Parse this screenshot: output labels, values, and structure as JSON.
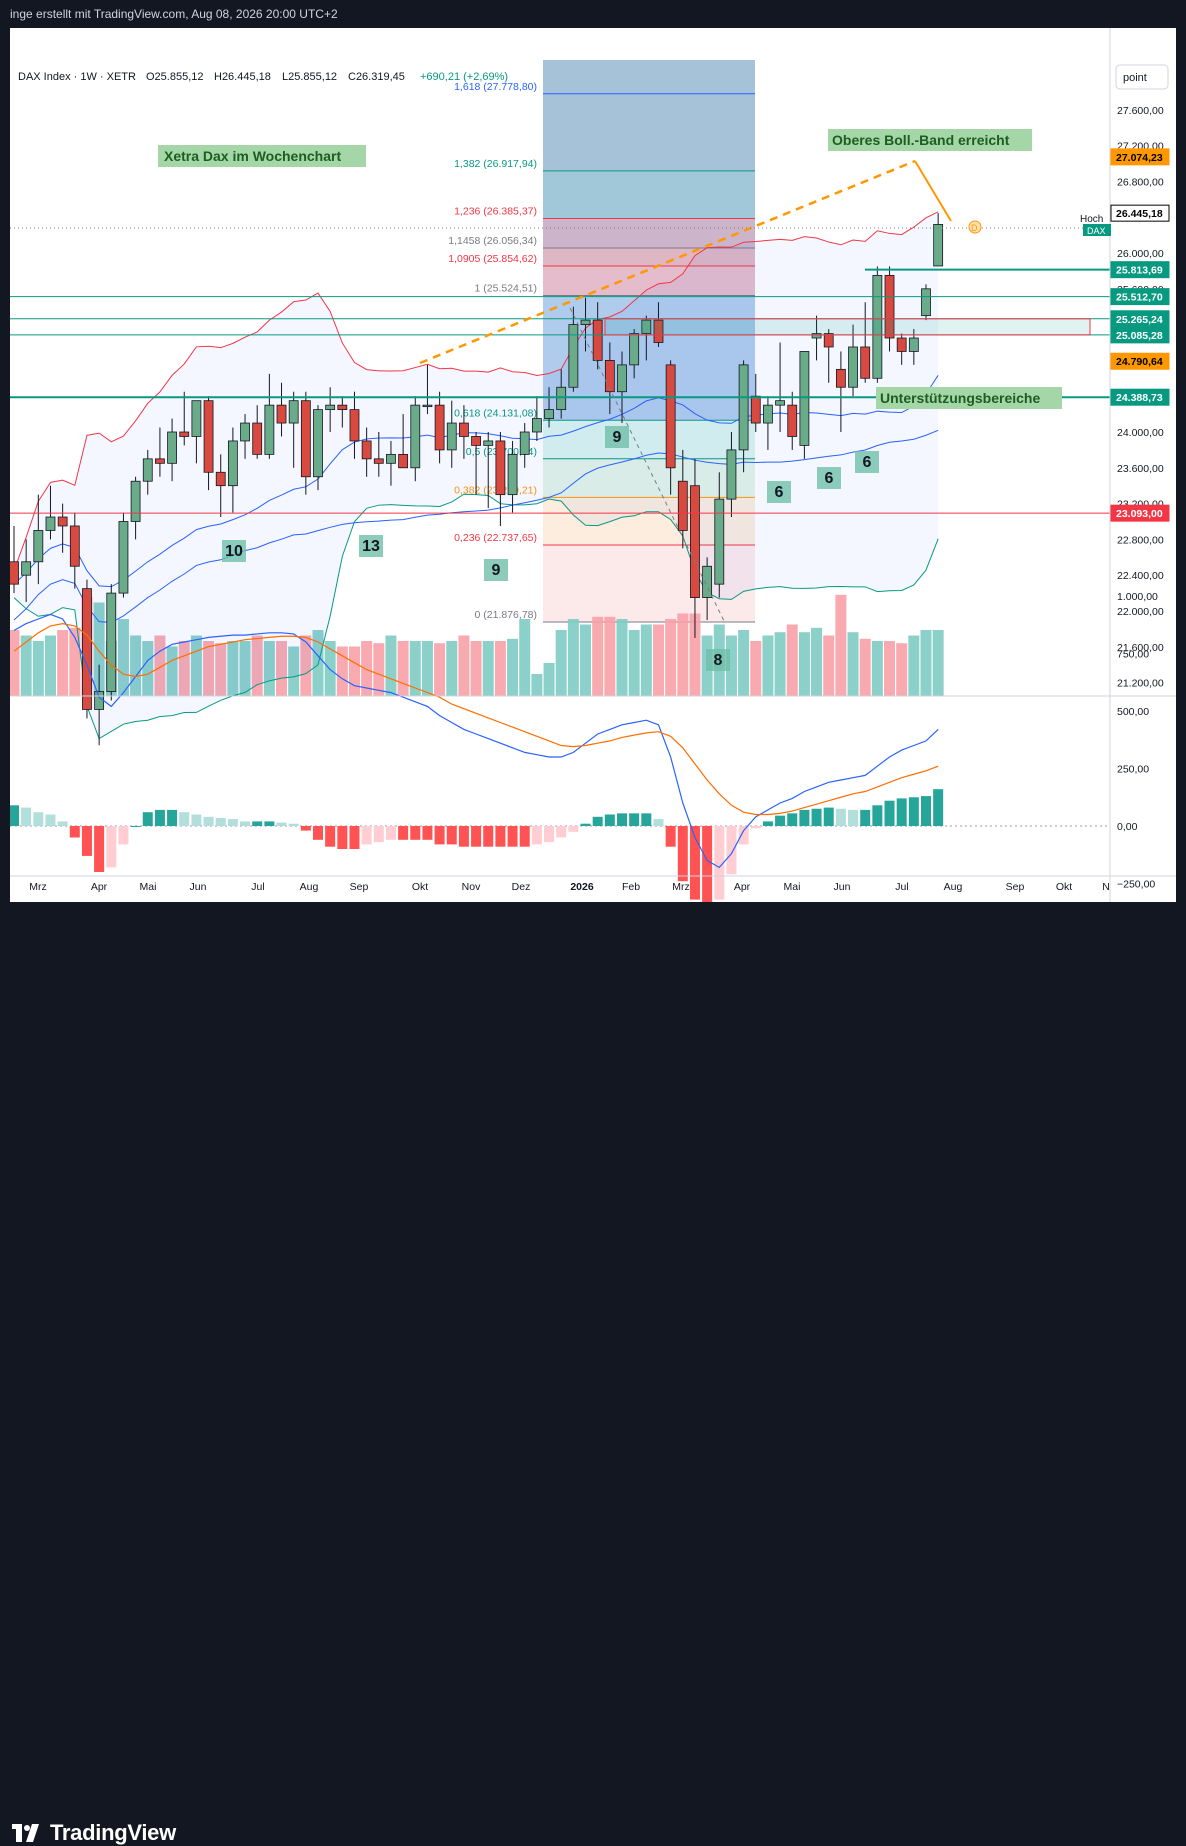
{
  "header": {
    "attribution": "inge erstellt mit TradingView.com, Aug 08, 2026 20:00 UTC+2"
  },
  "legend": {
    "symbol": "DAX Index · 1W · XETR",
    "open": "O25.855,12",
    "high": "H26.445,18",
    "low": "L25.855,12",
    "close": "C26.319,45",
    "change": "+690,21 (+2,69%)"
  },
  "annotations": {
    "title_box": "Xetra Dax im Wochenchart",
    "boll_box": "Oberes Boll.-Band erreicht",
    "support_box": "Unterstützungsbereiche",
    "d_marker": "D"
  },
  "axis_unit": "point",
  "price_ticks": [
    "27.600,00",
    "27.200,00",
    "26.800,00",
    "26.000,00",
    "25.600,00",
    "24.000,00",
    "23.600,00",
    "23.200,00",
    "22.800,00",
    "22.400,00",
    "22.000,00",
    "21.600,00",
    "21.200,00"
  ],
  "price_tags": [
    {
      "text": "27.074,23",
      "bg": "#ff9800",
      "color": "#000000"
    },
    {
      "text": "26.445,18",
      "bg": "#ffffff",
      "color": "#000000",
      "border": "#000000"
    },
    {
      "text": "25.813,69",
      "bg": "#089981",
      "color": "#ffffff"
    },
    {
      "text": "25.512,70",
      "bg": "#089981",
      "color": "#ffffff"
    },
    {
      "text": "25.265,24",
      "bg": "#089981",
      "color": "#ffffff"
    },
    {
      "text": "25.085,28",
      "bg": "#089981",
      "color": "#ffffff"
    },
    {
      "text": "24.790,64",
      "bg": "#ff9800",
      "color": "#000000"
    },
    {
      "text": "24.388,73",
      "bg": "#089981",
      "color": "#ffffff"
    },
    {
      "text": "23.093,00",
      "bg": "#f23645",
      "color": "#ffffff"
    }
  ],
  "hoch_label": "Hoch",
  "dax_label": "DAX",
  "fib_labels": [
    {
      "text": "1,618 (27.778,80)",
      "color": "#2962ff"
    },
    {
      "text": "1,382 (26.917,94)",
      "color": "#089981"
    },
    {
      "text": "1,236 (26.385,37)",
      "color": "#f23645"
    },
    {
      "text": "1,1458 (26.056,34)",
      "color": "#787b86"
    },
    {
      "text": "1,0905 (25.854,62)",
      "color": "#f23645"
    },
    {
      "text": "1 (25.524,51)",
      "color": "#787b86"
    },
    {
      "text": "0,618 (24.131,08)",
      "color": "#089981"
    },
    {
      "text": "0,5 (23.700,94)",
      "color": "#089981"
    },
    {
      "text": "0,382 (23.270,21)",
      "color": "#ff9800"
    },
    {
      "text": "0,236 (22.737,65)",
      "color": "#f23645"
    },
    {
      "text": "0 (21.876,78)",
      "color": "#787b86"
    }
  ],
  "counts": [
    "10",
    "13",
    "9",
    "9",
    "8",
    "6",
    "6",
    "6"
  ],
  "macd_ticks": [
    "1.000,00",
    "750,00",
    "500,00",
    "250,00",
    "0,00",
    "−250,00"
  ],
  "time_labels": [
    "Mrz",
    "Apr",
    "Mai",
    "Jun",
    "Jul",
    "Aug",
    "Sep",
    "Okt",
    "Nov",
    "Dez",
    "2026",
    "Feb",
    "Mrz",
    "Apr",
    "Mai",
    "Jun",
    "Jul",
    "Aug",
    "Sep",
    "Okt",
    "N"
  ],
  "footer": {
    "brand": "TradingView"
  },
  "colors": {
    "up": "#089981",
    "down": "#f23645",
    "accent": "#ff9800",
    "boll": "#f23645",
    "ma": "#2962ff"
  },
  "chart_data": {
    "type": "candlestick",
    "title": "Xetra Dax im Wochenchart",
    "symbol": "DAX Index, 1W, XETR",
    "y_range": [
      21000,
      28000
    ],
    "macd_range": [
      -350,
      1050
    ],
    "candles": [
      {
        "t": "2025-02-24",
        "o": 22550,
        "h": 22950,
        "l": 22200,
        "c": 22300
      },
      {
        "t": "2025-03-03",
        "o": 22400,
        "h": 22800,
        "l": 22100,
        "c": 22550
      },
      {
        "t": "2025-03-10",
        "o": 22550,
        "h": 23300,
        "l": 22300,
        "c": 22900
      },
      {
        "t": "2025-03-17",
        "o": 22900,
        "h": 23400,
        "l": 22800,
        "c": 23050
      },
      {
        "t": "2025-03-24",
        "o": 23050,
        "h": 23200,
        "l": 22650,
        "c": 22950
      },
      {
        "t": "2025-03-31",
        "o": 22950,
        "h": 23100,
        "l": 22250,
        "c": 22500
      },
      {
        "t": "2025-04-07",
        "o": 22250,
        "h": 22350,
        "l": 20800,
        "c": 20900
      },
      {
        "t": "2025-04-14",
        "o": 20900,
        "h": 21400,
        "l": 20500,
        "c": 21100
      },
      {
        "t": "2025-04-21",
        "o": 21100,
        "h": 22300,
        "l": 21000,
        "c": 22200
      },
      {
        "t": "2025-04-28",
        "o": 22200,
        "h": 23100,
        "l": 22150,
        "c": 23000
      },
      {
        "t": "2025-05-05",
        "o": 23000,
        "h": 23500,
        "l": 22800,
        "c": 23450
      },
      {
        "t": "2025-05-12",
        "o": 23450,
        "h": 23800,
        "l": 23300,
        "c": 23700
      },
      {
        "t": "2025-05-19",
        "o": 23700,
        "h": 24050,
        "l": 23500,
        "c": 23650
      },
      {
        "t": "2025-05-26",
        "o": 23650,
        "h": 24150,
        "l": 23450,
        "c": 24000
      },
      {
        "t": "2025-06-02",
        "o": 24000,
        "h": 24450,
        "l": 23850,
        "c": 23950
      },
      {
        "t": "2025-06-09",
        "o": 23950,
        "h": 24350,
        "l": 23650,
        "c": 24350
      },
      {
        "t": "2025-06-16",
        "o": 24350,
        "h": 24400,
        "l": 23350,
        "c": 23550
      },
      {
        "t": "2025-06-23",
        "o": 23550,
        "h": 23750,
        "l": 23050,
        "c": 23400
      },
      {
        "t": "2025-06-30",
        "o": 23400,
        "h": 24050,
        "l": 23100,
        "c": 23900
      },
      {
        "t": "2025-07-07",
        "o": 23900,
        "h": 24200,
        "l": 23700,
        "c": 24100
      },
      {
        "t": "2025-07-14",
        "o": 24100,
        "h": 24300,
        "l": 23700,
        "c": 23750
      },
      {
        "t": "2025-07-21",
        "o": 23750,
        "h": 24650,
        "l": 23700,
        "c": 24300
      },
      {
        "t": "2025-07-28",
        "o": 24300,
        "h": 24550,
        "l": 23950,
        "c": 24100
      },
      {
        "t": "2025-08-04",
        "o": 24100,
        "h": 24450,
        "l": 23600,
        "c": 24350
      },
      {
        "t": "2025-08-11",
        "o": 24350,
        "h": 24450,
        "l": 23300,
        "c": 23500
      },
      {
        "t": "2025-08-18",
        "o": 23500,
        "h": 24300,
        "l": 23350,
        "c": 24250
      },
      {
        "t": "2025-08-25",
        "o": 24250,
        "h": 24500,
        "l": 24000,
        "c": 24300
      },
      {
        "t": "2025-09-01",
        "o": 24300,
        "h": 24400,
        "l": 24050,
        "c": 24250
      },
      {
        "t": "2025-09-08",
        "o": 24250,
        "h": 24450,
        "l": 23700,
        "c": 23900
      },
      {
        "t": "2025-09-15",
        "o": 23900,
        "h": 24050,
        "l": 23500,
        "c": 23700
      },
      {
        "t": "2025-09-22",
        "o": 23700,
        "h": 24000,
        "l": 23500,
        "c": 23650
      },
      {
        "t": "2025-09-29",
        "o": 23650,
        "h": 23900,
        "l": 23400,
        "c": 23750
      },
      {
        "t": "2025-10-06",
        "o": 23750,
        "h": 24200,
        "l": 23650,
        "c": 23600
      },
      {
        "t": "2025-10-13",
        "o": 23600,
        "h": 24400,
        "l": 23450,
        "c": 24300
      },
      {
        "t": "2025-10-20",
        "o": 24300,
        "h": 24750,
        "l": 24200,
        "c": 24300
      },
      {
        "t": "2025-10-27",
        "o": 24300,
        "h": 24450,
        "l": 23650,
        "c": 23800
      },
      {
        "t": "2025-11-03",
        "o": 23800,
        "h": 24350,
        "l": 23600,
        "c": 24100
      },
      {
        "t": "2025-11-10",
        "o": 24100,
        "h": 24300,
        "l": 23700,
        "c": 23950
      },
      {
        "t": "2025-11-17",
        "o": 23950,
        "h": 24000,
        "l": 23300,
        "c": 23850
      },
      {
        "t": "2025-11-24",
        "o": 23850,
        "h": 24000,
        "l": 23150,
        "c": 23900
      },
      {
        "t": "2025-12-01",
        "o": 23900,
        "h": 24000,
        "l": 22950,
        "c": 23300
      },
      {
        "t": "2025-12-08",
        "o": 23300,
        "h": 23900,
        "l": 23100,
        "c": 23750
      },
      {
        "t": "2025-12-15",
        "o": 23750,
        "h": 24100,
        "l": 23600,
        "c": 24000
      },
      {
        "t": "2025-12-22",
        "o": 24000,
        "h": 24400,
        "l": 23900,
        "c": 24150
      },
      {
        "t": "2025-12-29",
        "o": 24150,
        "h": 24500,
        "l": 24050,
        "c": 24250
      },
      {
        "t": "2026-01-05",
        "o": 24250,
        "h": 24700,
        "l": 24150,
        "c": 24500
      },
      {
        "t": "2026-01-12",
        "o": 24500,
        "h": 25400,
        "l": 24450,
        "c": 25200
      },
      {
        "t": "2026-01-19",
        "o": 25200,
        "h": 25500,
        "l": 24900,
        "c": 25250
      },
      {
        "t": "2026-01-26",
        "o": 25250,
        "h": 25450,
        "l": 24700,
        "c": 24800
      },
      {
        "t": "2026-02-02",
        "o": 24800,
        "h": 25000,
        "l": 24200,
        "c": 24450
      },
      {
        "t": "2026-02-09",
        "o": 24450,
        "h": 24900,
        "l": 24100,
        "c": 24750
      },
      {
        "t": "2026-02-16",
        "o": 24750,
        "h": 25150,
        "l": 24600,
        "c": 25100
      },
      {
        "t": "2026-02-23",
        "o": 25100,
        "h": 25300,
        "l": 24800,
        "c": 25250
      },
      {
        "t": "2026-03-02",
        "o": 25250,
        "h": 25450,
        "l": 24950,
        "c": 25000
      },
      {
        "t": "2026-03-09",
        "o": 24750,
        "h": 24800,
        "l": 23300,
        "c": 23600
      },
      {
        "t": "2026-03-16",
        "o": 23450,
        "h": 23800,
        "l": 22700,
        "c": 22900
      },
      {
        "t": "2026-03-23",
        "o": 23400,
        "h": 23700,
        "l": 21700,
        "c": 22150
      },
      {
        "t": "2026-03-30",
        "o": 22150,
        "h": 22600,
        "l": 21900,
        "c": 22500
      },
      {
        "t": "2026-04-06",
        "o": 22300,
        "h": 23550,
        "l": 22150,
        "c": 23250
      },
      {
        "t": "2026-04-13",
        "o": 23250,
        "h": 24000,
        "l": 23050,
        "c": 23800
      },
      {
        "t": "2026-04-20",
        "o": 23800,
        "h": 24800,
        "l": 23550,
        "c": 24750
      },
      {
        "t": "2026-04-27",
        "o": 24400,
        "h": 24650,
        "l": 24000,
        "c": 24100
      },
      {
        "t": "2026-05-04",
        "o": 24100,
        "h": 24400,
        "l": 23800,
        "c": 24300
      },
      {
        "t": "2026-05-11",
        "o": 24300,
        "h": 25000,
        "l": 24000,
        "c": 24350
      },
      {
        "t": "2026-05-18",
        "o": 24300,
        "h": 24450,
        "l": 23800,
        "c": 23950
      },
      {
        "t": "2026-05-25",
        "o": 23850,
        "h": 24900,
        "l": 23700,
        "c": 24900
      },
      {
        "t": "2026-06-01",
        "o": 25050,
        "h": 25300,
        "l": 24800,
        "c": 25100
      },
      {
        "t": "2026-06-08",
        "o": 25100,
        "h": 25150,
        "l": 24550,
        "c": 24950
      },
      {
        "t": "2026-06-15",
        "o": 24700,
        "h": 24900,
        "l": 24000,
        "c": 24500
      },
      {
        "t": "2026-06-22",
        "o": 24500,
        "h": 25200,
        "l": 24400,
        "c": 24950
      },
      {
        "t": "2026-06-29",
        "o": 24950,
        "h": 25450,
        "l": 24550,
        "c": 24600
      },
      {
        "t": "2026-07-06",
        "o": 24600,
        "h": 25850,
        "l": 24550,
        "c": 25750
      },
      {
        "t": "2026-07-13",
        "o": 25750,
        "h": 25850,
        "l": 24900,
        "c": 25050
      },
      {
        "t": "2026-07-20",
        "o": 25050,
        "h": 25100,
        "l": 24750,
        "c": 24900
      },
      {
        "t": "2026-07-27",
        "o": 24900,
        "h": 25150,
        "l": 24750,
        "c": 25050
      },
      {
        "t": "2026-08-03",
        "o": 25300,
        "h": 25650,
        "l": 25250,
        "c": 25600
      },
      {
        "t": "2026-08-10",
        "o": 25855.12,
        "h": 26445.18,
        "l": 25855.12,
        "c": 26319.45
      }
    ],
    "horizontal_levels": [
      25813.69,
      25512.7,
      25265.24,
      25085.28,
      24388.73,
      23093.0
    ],
    "fibonacci": [
      {
        "ratio": 1.618,
        "price": 27778.8
      },
      {
        "ratio": 1.382,
        "price": 26917.94
      },
      {
        "ratio": 1.236,
        "price": 26385.37
      },
      {
        "ratio": 1.1458,
        "price": 26056.34
      },
      {
        "ratio": 1.0905,
        "price": 25854.62
      },
      {
        "ratio": 1.0,
        "price": 25524.51
      },
      {
        "ratio": 0.618,
        "price": 24131.08
      },
      {
        "ratio": 0.5,
        "price": 23700.94
      },
      {
        "ratio": 0.382,
        "price": 23270.21
      },
      {
        "ratio": 0.236,
        "price": 22737.65
      },
      {
        "ratio": 0,
        "price": 21876.78
      }
    ],
    "macd": {
      "macd_line": [
        850,
        880,
        900,
        920,
        900,
        820,
        700,
        560,
        520,
        580,
        650,
        720,
        760,
        790,
        800,
        810,
        820,
        825,
        830,
        830,
        835,
        840,
        840,
        835,
        800,
        740,
        680,
        640,
        610,
        600,
        590,
        580,
        560,
        540,
        520,
        480,
        450,
        420,
        400,
        380,
        360,
        340,
        320,
        310,
        300,
        300,
        320,
        360,
        400,
        420,
        440,
        450,
        460,
        440,
        300,
        100,
        -50,
        -150,
        -180,
        -120,
        -20,
        40,
        70,
        100,
        120,
        150,
        170,
        190,
        200,
        210,
        220,
        260,
        300,
        330,
        350,
        370,
        420
      ],
      "signal_line": [
        760,
        800,
        840,
        870,
        880,
        870,
        830,
        760,
        700,
        660,
        650,
        660,
        690,
        720,
        740,
        760,
        780,
        790,
        800,
        810,
        815,
        820,
        825,
        825,
        820,
        800,
        770,
        740,
        710,
        680,
        660,
        640,
        620,
        600,
        580,
        560,
        530,
        510,
        490,
        470,
        450,
        430,
        410,
        390,
        370,
        350,
        345,
        350,
        360,
        370,
        385,
        395,
        405,
        410,
        390,
        340,
        270,
        200,
        140,
        90,
        60,
        50,
        50,
        55,
        65,
        80,
        95,
        110,
        125,
        140,
        150,
        170,
        190,
        210,
        225,
        240,
        260
      ]
    },
    "volume_relative": [
      0.6,
      0.55,
      0.5,
      0.55,
      0.6,
      0.62,
      0.9,
      0.85,
      0.5,
      0.7,
      0.55,
      0.5,
      0.55,
      0.45,
      0.5,
      0.55,
      0.5,
      0.48,
      0.5,
      0.5,
      0.55,
      0.5,
      0.5,
      0.45,
      0.55,
      0.6,
      0.5,
      0.45,
      0.45,
      0.5,
      0.48,
      0.55,
      0.5,
      0.5,
      0.5,
      0.48,
      0.5,
      0.55,
      0.5,
      0.5,
      0.5,
      0.52,
      0.7,
      0.2,
      0.3,
      0.6,
      0.7,
      0.65,
      0.72,
      0.72,
      0.7,
      0.6,
      0.65,
      0.65,
      0.7,
      0.75,
      0.75,
      0.55,
      0.65,
      0.55,
      0.6,
      0.5,
      0.55,
      0.58,
      0.65,
      0.58,
      0.62,
      0.55,
      0.92,
      0.58,
      0.52,
      0.5,
      0.5,
      0.48,
      0.55,
      0.6,
      0.6
    ]
  }
}
